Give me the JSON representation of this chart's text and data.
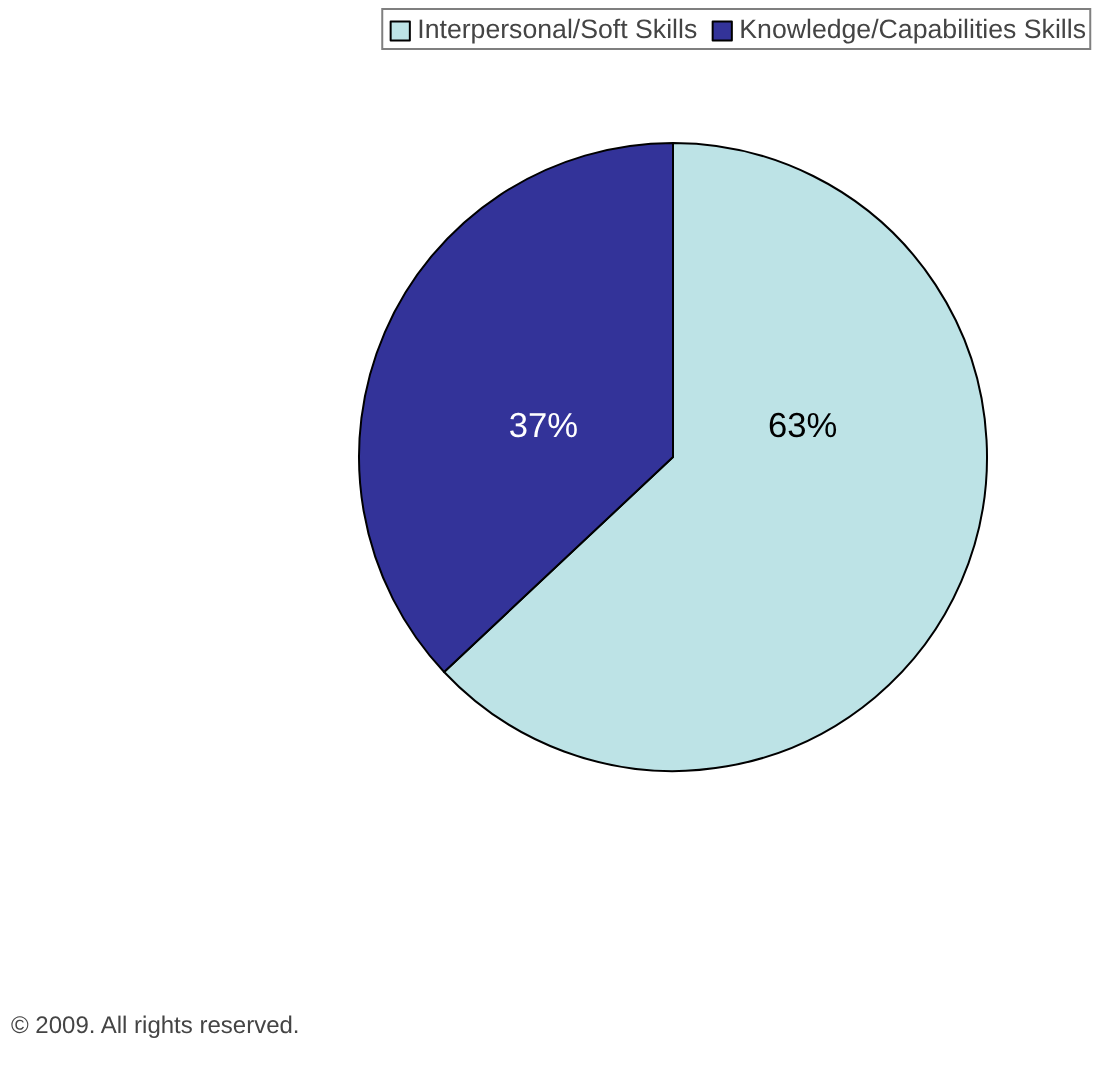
{
  "chart_data": {
    "type": "pie",
    "categories": [
      "Interpersonal/Soft Skills",
      "Knowledge/Capabilities Skills"
    ],
    "values": [
      63,
      37
    ],
    "colors": [
      "#bde3e6",
      "#333399"
    ],
    "value_labels": [
      "63%",
      "37%"
    ],
    "legend": "top right",
    "annotations": [
      "© 2009. All rights reserved."
    ]
  }
}
